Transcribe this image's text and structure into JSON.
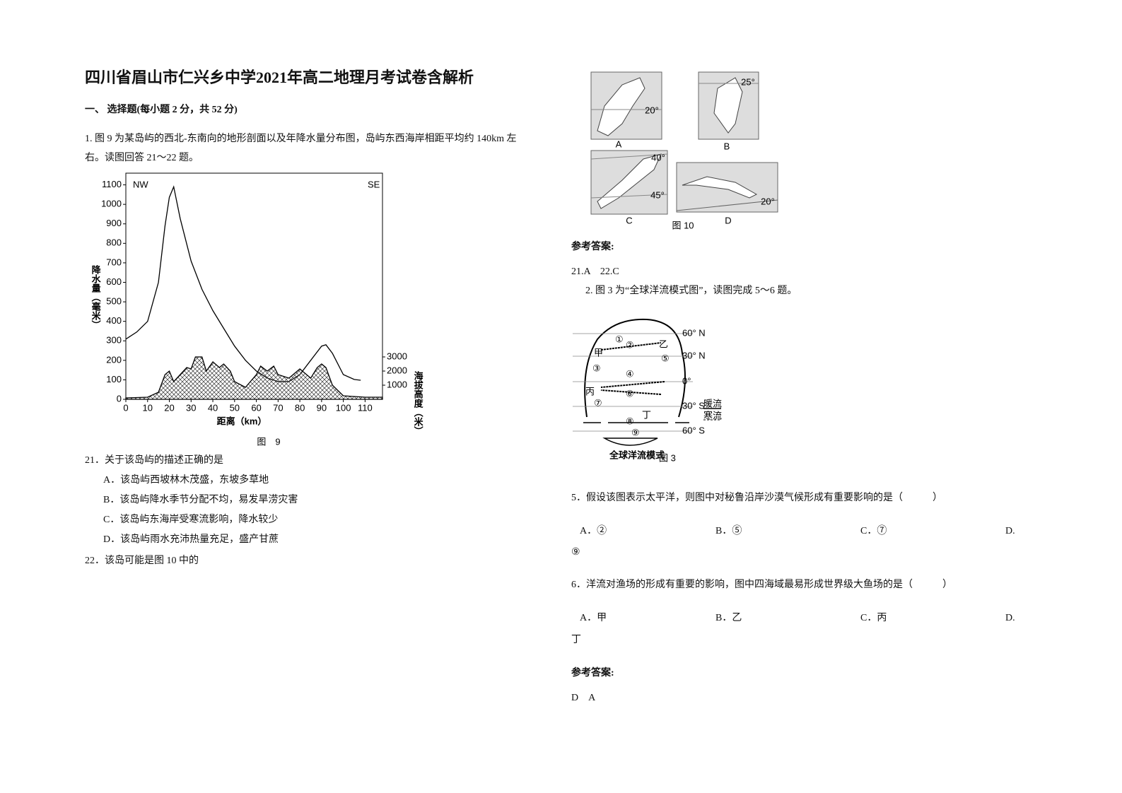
{
  "title": "四川省眉山市仁兴乡中学2021年高二地理月考试卷含解析",
  "section": "一、 选择题(每小题 2 分，共 52 分)",
  "q1": [
    "1. 图 9 为某岛屿的西北-东南向的地形剖面以及年降水量分布图，岛屿东西海岸相距平均约 140km 左",
    "右。读图回答 21～22 题。"
  ],
  "figure9": {
    "type": "line",
    "nw": "NW",
    "se": "SE",
    "ylabel": "降水量（毫米）",
    "y2label": "海拔高度（米）",
    "xlabel": "距离（km）",
    "caption": "图　9",
    "xlim": [
      0,
      118
    ],
    "ylim": [
      0,
      1160
    ],
    "y2lim": [
      0,
      16000
    ],
    "xticks": [
      0,
      10,
      20,
      30,
      40,
      50,
      60,
      70,
      80,
      90,
      100,
      110
    ],
    "yticks": [
      0,
      100,
      200,
      300,
      400,
      500,
      600,
      700,
      800,
      900,
      1000,
      1100
    ],
    "y2ticks": [
      1000,
      2000,
      3000
    ],
    "series": [
      {
        "color": "#000000",
        "x": [
          0,
          5,
          10,
          15,
          18,
          20,
          22,
          25,
          30,
          35,
          40,
          45,
          50,
          55,
          60,
          65,
          70,
          75,
          80,
          85,
          90,
          92,
          95,
          100,
          105,
          108
        ],
        "values": [
          309,
          345,
          400,
          600,
          890,
          1036,
          1090,
          927,
          709,
          564,
          455,
          364,
          273,
          200,
          145,
          109,
          91,
          91,
          127,
          200,
          273,
          280,
          236,
          127,
          102,
          98
        ]
      },
      {
        "color": "#000000",
        "axis": "y2",
        "x": [
          0,
          10,
          15,
          18,
          20,
          22,
          25,
          28,
          30,
          32,
          35,
          37,
          40,
          43,
          45,
          48,
          50,
          55,
          60,
          62,
          65,
          68,
          70,
          75,
          80,
          85,
          88,
          90,
          92,
          95,
          100,
          110,
          118
        ],
        "values": [
          100,
          150,
          500,
          1750,
          2000,
          1250,
          1750,
          2250,
          2150,
          3000,
          3000,
          2000,
          2650,
          2250,
          2500,
          2000,
          1250,
          850,
          1750,
          2350,
          2000,
          2350,
          1750,
          1500,
          2150,
          1500,
          2250,
          2500,
          2250,
          1000,
          250,
          150,
          150
        ]
      }
    ]
  },
  "q21": {
    "stem": "21．关于该岛屿的描述正确的是",
    "options": [
      "A．该岛屿西坡林木茂盛，东坡多草地",
      "B．该岛屿降水季节分配不均，易发旱涝灾害",
      "C．该岛屿东海岸受寒流影响，降水较少",
      "D．该岛屿雨水充沛热量充足，盛产甘蔗"
    ]
  },
  "q22": {
    "stem": "22．该岛可能是图 10 中的"
  },
  "figure10": {
    "panels": [
      {
        "label": "A",
        "lat": [
          "20°"
        ]
      },
      {
        "label": "B",
        "lat": [
          "25°"
        ]
      },
      {
        "label": "C",
        "lat": [
          "40°",
          "45°"
        ]
      },
      {
        "label": "D",
        "lat": [
          "20°"
        ]
      }
    ],
    "caption": "图 10"
  },
  "answer1": {
    "heading": "参考答案:",
    "text": "21.A　22.C"
  },
  "q2": "2. 图 3 为“全球洋流模式图”，读图完成 5～6 题。",
  "figure3": {
    "lats": [
      "60° N",
      "30° N",
      "0°",
      "30° S",
      "60° S"
    ],
    "places": [
      "甲",
      "乙",
      "丙",
      "丁"
    ],
    "numbers": [
      "①",
      "②",
      "③",
      "④",
      "⑤",
      "⑥",
      "⑦",
      "⑧",
      "⑨"
    ],
    "legend": [
      "暖流",
      "寒流"
    ],
    "title": "全球洋流模式",
    "caption": "图 3"
  },
  "q5": {
    "stem": "5．假设该图表示太平洋，则图中对秘鲁沿岸沙漠气候形成有重要影响的是（　　　）",
    "options": [
      "A．②",
      "B．⑤",
      "C．⑦",
      "D."
    ],
    "wrap": "⑨"
  },
  "q6": {
    "stem": "6．洋流对渔场的形成有重要的影响，图中四海域最易形成世界级大鱼场的是（　　　）",
    "options": [
      "A．甲",
      "B．乙",
      "C．丙",
      "D."
    ],
    "wrap": "丁"
  },
  "answer2": {
    "heading": "参考答案:",
    "text": "D　A"
  }
}
